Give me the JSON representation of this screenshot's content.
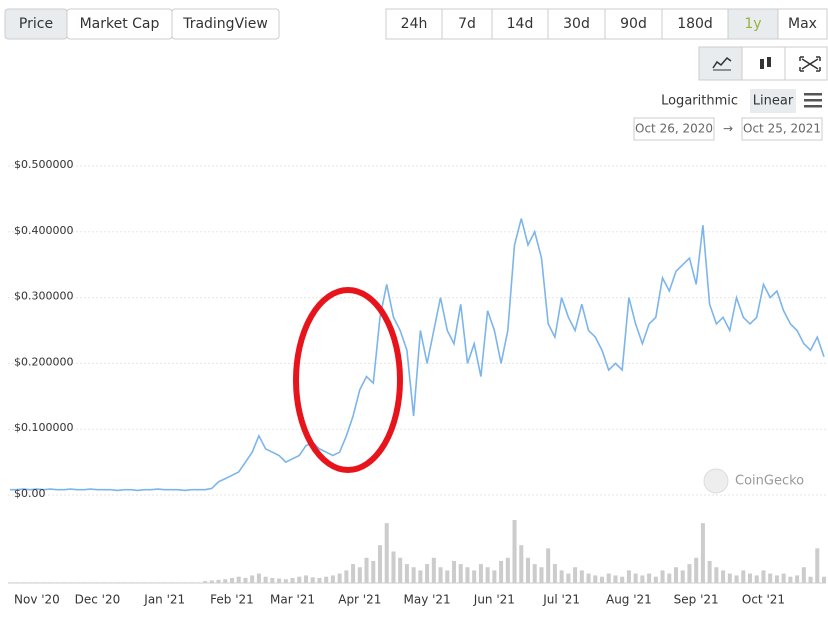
{
  "controls": {
    "tabs": [
      "Price",
      "Market Cap",
      "TradingView"
    ],
    "active_tab": 0,
    "ranges": [
      "24h",
      "7d",
      "14d",
      "30d",
      "90d",
      "180d",
      "1y",
      "Max"
    ],
    "active_range": 6,
    "scales": [
      "Logarithmic",
      "Linear"
    ],
    "active_scale": 1,
    "date_from": "Oct 26, 2020",
    "date_separator": "→",
    "date_to": "Oct 25, 2021",
    "watermark": "CoinGecko"
  },
  "chart_data": {
    "type": "line",
    "categories": [
      null,
      null,
      null,
      null,
      "Nov '20",
      null,
      null,
      null,
      null,
      null,
      null,
      null,
      null,
      "Dec '20",
      null,
      null,
      null,
      null,
      null,
      null,
      null,
      null,
      null,
      "Jan '21",
      null,
      null,
      null,
      null,
      null,
      null,
      null,
      null,
      null,
      "Feb '21",
      null,
      null,
      null,
      null,
      null,
      null,
      null,
      null,
      "Mar '21",
      null,
      null,
      null,
      null,
      null,
      null,
      null,
      null,
      null,
      "Apr '21",
      null,
      null,
      null,
      null,
      null,
      null,
      null,
      null,
      null,
      "May '21",
      null,
      null,
      null,
      null,
      null,
      null,
      null,
      null,
      null,
      "Jun '21",
      null,
      null,
      null,
      null,
      null,
      null,
      null,
      null,
      null,
      "Jul '21",
      null,
      null,
      null,
      null,
      null,
      null,
      null,
      null,
      null,
      "Aug '21",
      null,
      null,
      null,
      null,
      null,
      null,
      null,
      null,
      null,
      "Sep '21",
      null,
      null,
      null,
      null,
      null,
      null,
      null,
      null,
      null,
      "Oct '21",
      null,
      null,
      null,
      null,
      null,
      null,
      null,
      null,
      null
    ],
    "series": [
      {
        "color": "#7cb5ec",
        "values": [
          0.008,
          0.008,
          0.009,
          0.008,
          0.009,
          0.008,
          0.009,
          0.008,
          0.008,
          0.009,
          0.008,
          0.008,
          0.009,
          0.008,
          0.008,
          0.008,
          0.007,
          0.008,
          0.008,
          0.007,
          0.008,
          0.008,
          0.009,
          0.008,
          0.008,
          0.008,
          0.007,
          0.008,
          0.008,
          0.008,
          0.01,
          0.02,
          0.025,
          0.03,
          0.035,
          0.05,
          0.065,
          0.09,
          0.07,
          0.065,
          0.06,
          0.05,
          0.055,
          0.06,
          0.075,
          0.08,
          0.07,
          0.065,
          0.06,
          0.065,
          0.09,
          0.12,
          0.16,
          0.18,
          0.17,
          0.27,
          0.32,
          0.27,
          0.25,
          0.22,
          0.12,
          0.25,
          0.2,
          0.25,
          0.3,
          0.25,
          0.23,
          0.29,
          0.2,
          0.23,
          0.18,
          0.28,
          0.25,
          0.2,
          0.25,
          0.38,
          0.42,
          0.38,
          0.4,
          0.36,
          0.26,
          0.24,
          0.3,
          0.27,
          0.25,
          0.29,
          0.25,
          0.24,
          0.22,
          0.19,
          0.2,
          0.19,
          0.3,
          0.26,
          0.23,
          0.26,
          0.27,
          0.33,
          0.31,
          0.34,
          0.35,
          0.36,
          0.32,
          0.41,
          0.29,
          0.26,
          0.27,
          0.25,
          0.3,
          0.27,
          0.26,
          0.27,
          0.32,
          0.3,
          0.31,
          0.28,
          0.26,
          0.25,
          0.23,
          0.22,
          0.24,
          0.21
        ]
      },
      {
        "color": "#cccccc",
        "axis": "y2",
        "values": [
          1,
          1,
          1,
          1,
          1,
          1,
          1,
          1,
          1,
          1,
          1,
          1,
          1,
          1,
          1,
          1,
          1,
          1,
          1,
          1,
          1,
          1,
          1,
          1,
          1,
          1,
          1,
          1,
          1,
          3,
          4,
          5,
          6,
          8,
          10,
          8,
          12,
          15,
          10,
          8,
          7,
          6,
          8,
          10,
          12,
          9,
          8,
          10,
          12,
          15,
          20,
          30,
          25,
          40,
          35,
          60,
          95,
          50,
          40,
          30,
          25,
          20,
          30,
          40,
          25,
          20,
          35,
          30,
          25,
          20,
          30,
          25,
          20,
          35,
          40,
          100,
          60,
          40,
          30,
          25,
          55,
          30,
          20,
          15,
          25,
          20,
          15,
          12,
          10,
          15,
          12,
          10,
          20,
          15,
          12,
          15,
          10,
          20,
          15,
          25,
          20,
          30,
          40,
          95,
          35,
          25,
          20,
          15,
          12,
          20,
          15,
          12,
          20,
          15,
          12,
          15,
          10,
          12,
          25,
          10,
          55,
          10
        ]
      }
    ],
    "ylim": [
      0,
      0.5
    ],
    "yticks": [
      {
        "value": 0,
        "label": "$0.00"
      },
      {
        "value": 0.1,
        "label": "$0.100000"
      },
      {
        "value": 0.2,
        "label": "$0.200000"
      },
      {
        "value": 0.3,
        "label": "$0.300000"
      },
      {
        "value": 0.4,
        "label": "$0.400000"
      },
      {
        "value": 0.5,
        "label": "$0.500000"
      }
    ],
    "y2lim": [
      0,
      100
    ],
    "grid": true
  }
}
